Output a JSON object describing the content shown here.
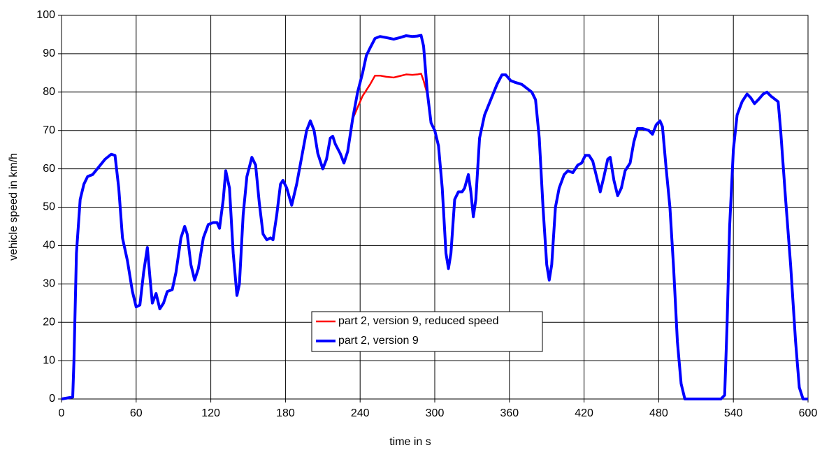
{
  "chart_data": {
    "type": "line",
    "xlabel": "time in s",
    "ylabel": "vehicle speed in km/h",
    "x": [
      0,
      9,
      10,
      12,
      15,
      18,
      21,
      25,
      30,
      35,
      40,
      43,
      46,
      49,
      53,
      57,
      60,
      63,
      66,
      69,
      71,
      73,
      76,
      79,
      82,
      85,
      89,
      92,
      96,
      99,
      101,
      104,
      107,
      110,
      114,
      118,
      122,
      125,
      127,
      130,
      132,
      135,
      138,
      141,
      143,
      146,
      149,
      153,
      156,
      159,
      162,
      165,
      168,
      170,
      173,
      176,
      178,
      181,
      185,
      189,
      193,
      197,
      200,
      203,
      206,
      210,
      213,
      216,
      218,
      220,
      224,
      227,
      230,
      234,
      238,
      242,
      245,
      248,
      252,
      256,
      261,
      267,
      272,
      277,
      282,
      286,
      289,
      291,
      294,
      297,
      300,
      303,
      306,
      309,
      311,
      313,
      316,
      319,
      322,
      324,
      327,
      329,
      331,
      333,
      336,
      340,
      345,
      350,
      354,
      357,
      361,
      365,
      370,
      374,
      378,
      381,
      384,
      387,
      390,
      392,
      394,
      397,
      400,
      404,
      407,
      411,
      415,
      418,
      421,
      424,
      427,
      430,
      433,
      436,
      439,
      441,
      444,
      447,
      450,
      453,
      457,
      460,
      463,
      467,
      472,
      475,
      478,
      481,
      483,
      486,
      489,
      492,
      495,
      498,
      501,
      510,
      520,
      530,
      533,
      535,
      537,
      540,
      543,
      547,
      551,
      554,
      557,
      560,
      564,
      567,
      570,
      574,
      576,
      578,
      582,
      586,
      590,
      593,
      596,
      600
    ],
    "series": [
      {
        "name": "part 2, version 9, reduced speed",
        "color": "#ff0000",
        "width": 2.5,
        "values": [
          0,
          0.5,
          10,
          38,
          52,
          56,
          58,
          58.5,
          60.5,
          62.5,
          63.8,
          63.5,
          55,
          42,
          36,
          28,
          24,
          24.5,
          33,
          39.5,
          32,
          25,
          27.5,
          23.5,
          25,
          28,
          28.5,
          33,
          42,
          45,
          43,
          35,
          31,
          34,
          42,
          45.5,
          46,
          46,
          44.5,
          52,
          59.5,
          55,
          38,
          27,
          30,
          48,
          58,
          63,
          61,
          51,
          43,
          41.5,
          42,
          41.5,
          48,
          56,
          57,
          55,
          50.5,
          56,
          63,
          70,
          72.5,
          70,
          64,
          60,
          62.5,
          68,
          68.5,
          66.5,
          64,
          61.5,
          64.5,
          73,
          76,
          79,
          80.5,
          82,
          84.3,
          84.3,
          84,
          83.8,
          84.2,
          84.6,
          84.5,
          84.6,
          84.8,
          83,
          79.5,
          72,
          70,
          66,
          55,
          38,
          34,
          38,
          52,
          54,
          54,
          55,
          58.5,
          54,
          47.5,
          52,
          68,
          74,
          78,
          82,
          84.5,
          84.5,
          83,
          82.5,
          82,
          81,
          80,
          78,
          68,
          50,
          35,
          31,
          35,
          50,
          55,
          58.5,
          59.5,
          59,
          61,
          61.5,
          63.5,
          63.5,
          62,
          58,
          54,
          58,
          62.5,
          63,
          57,
          53,
          55,
          59.5,
          61.5,
          67,
          70.5,
          70.5,
          70,
          69,
          71.5,
          72.5,
          71,
          60,
          50,
          34,
          15,
          4,
          0,
          0,
          0,
          0,
          1,
          20,
          45,
          65,
          74,
          77.5,
          79.5,
          78.5,
          77,
          78,
          79.5,
          80,
          79,
          78,
          77.5,
          70,
          52,
          35,
          15,
          3,
          0,
          0
        ]
      },
      {
        "name": "part 2, version 9",
        "color": "#0000ff",
        "width": 4,
        "values": [
          0,
          0.5,
          10,
          38,
          52,
          56,
          58,
          58.5,
          60.5,
          62.5,
          63.8,
          63.5,
          55,
          42,
          36,
          28,
          24,
          24.5,
          33,
          39.5,
          32,
          25,
          27.5,
          23.5,
          25,
          28,
          28.5,
          33,
          42,
          45,
          43,
          35,
          31,
          34,
          42,
          45.5,
          46,
          46,
          44.5,
          52,
          59.5,
          55,
          38,
          27,
          30,
          48,
          58,
          63,
          61,
          51,
          43,
          41.5,
          42,
          41.5,
          48,
          56,
          57,
          55,
          50.5,
          56,
          63,
          70,
          72.5,
          70,
          64,
          60,
          62.5,
          68,
          68.5,
          66.5,
          64,
          61.5,
          64.5,
          73,
          80,
          85,
          89.5,
          91.5,
          94,
          94.5,
          94.2,
          93.8,
          94.2,
          94.7,
          94.5,
          94.6,
          94.8,
          92,
          80,
          72,
          70,
          66,
          55,
          38,
          34,
          38,
          52,
          54,
          54,
          55,
          58.5,
          54,
          47.5,
          52,
          68,
          74,
          78,
          82,
          84.5,
          84.5,
          83,
          82.5,
          82,
          81,
          80,
          78,
          68,
          50,
          35,
          31,
          35,
          50,
          55,
          58.5,
          59.5,
          59,
          61,
          61.5,
          63.5,
          63.5,
          62,
          58,
          54,
          58,
          62.5,
          63,
          57,
          53,
          55,
          59.5,
          61.5,
          67,
          70.5,
          70.5,
          70,
          69,
          71.5,
          72.5,
          71,
          60,
          50,
          34,
          15,
          4,
          0,
          0,
          0,
          0,
          1,
          20,
          45,
          65,
          74,
          77.5,
          79.5,
          78.5,
          77,
          78,
          79.5,
          80,
          79,
          78,
          77.5,
          70,
          52,
          35,
          15,
          3,
          0,
          0
        ]
      }
    ],
    "xlim": [
      0,
      600
    ],
    "xticks": [
      0,
      60,
      120,
      180,
      240,
      300,
      360,
      420,
      480,
      540,
      600
    ],
    "ylim": [
      0,
      100
    ],
    "yticks": [
      0,
      10,
      20,
      30,
      40,
      50,
      60,
      70,
      80,
      90,
      100
    ],
    "grid": true,
    "legend": "center"
  }
}
